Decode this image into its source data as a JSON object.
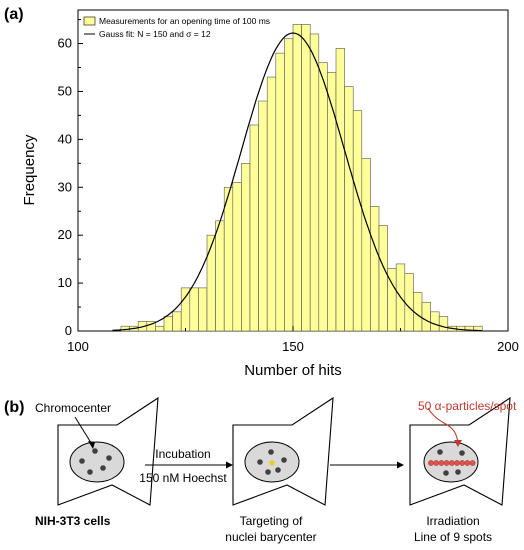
{
  "panel_a_label": "(a)",
  "panel_b_label": "(b)",
  "chart_data": {
    "type": "bar",
    "xlabel": "Number of hits",
    "ylabel": "Frequency",
    "xlim": [
      100,
      200
    ],
    "ylim": [
      0,
      67
    ],
    "xticks": [
      100,
      150,
      200
    ],
    "yticks": [
      0,
      10,
      20,
      30,
      40,
      50,
      60
    ],
    "bin_width": 2,
    "x": [
      110,
      112,
      114,
      116,
      118,
      120,
      122,
      124,
      126,
      128,
      130,
      132,
      134,
      136,
      138,
      140,
      142,
      144,
      146,
      148,
      150,
      152,
      154,
      156,
      158,
      160,
      162,
      164,
      166,
      168,
      170,
      172,
      174,
      176,
      178,
      180,
      182,
      184,
      186,
      188,
      190,
      192
    ],
    "values": [
      1,
      1,
      2,
      2,
      1,
      3,
      4,
      9,
      9,
      9,
      20,
      23,
      30,
      31,
      35,
      43,
      48,
      53,
      58,
      61,
      64,
      64,
      62,
      56,
      54,
      59,
      51,
      46,
      36,
      26,
      22,
      13,
      14,
      12,
      8,
      6,
      4,
      3,
      1,
      1,
      1,
      1
    ],
    "fit": {
      "mu": 150,
      "sigma": 12,
      "peak": 62.2
    },
    "legend": [
      {
        "label": "Measurements for an opening time of 100 ms",
        "color": "#ffff99"
      },
      {
        "label": "Gauss fit: N = 150 and σ = 12",
        "color": "#000000"
      }
    ],
    "legend_position": "top-left"
  },
  "schematic": {
    "chromocenter_label": "Chromocenter",
    "incubation_line1": "Incubation",
    "incubation_line2": "150 nM Hoechst",
    "cell_label_1": "NIH-3T3 cells",
    "cell_label_2_line1": "Targeting of",
    "cell_label_2_line2": "nuclei barycenter",
    "cell_label_3_line1": "Irradiation",
    "cell_label_3_line2": "Line of 9 spots",
    "particles_label": "50 α-particles/spot",
    "colors": {
      "nucleus": "#d9d9d9",
      "dots": "#404040",
      "target": "#f2c81f",
      "spots": "#d9534f",
      "accent": "#c0392b"
    }
  }
}
